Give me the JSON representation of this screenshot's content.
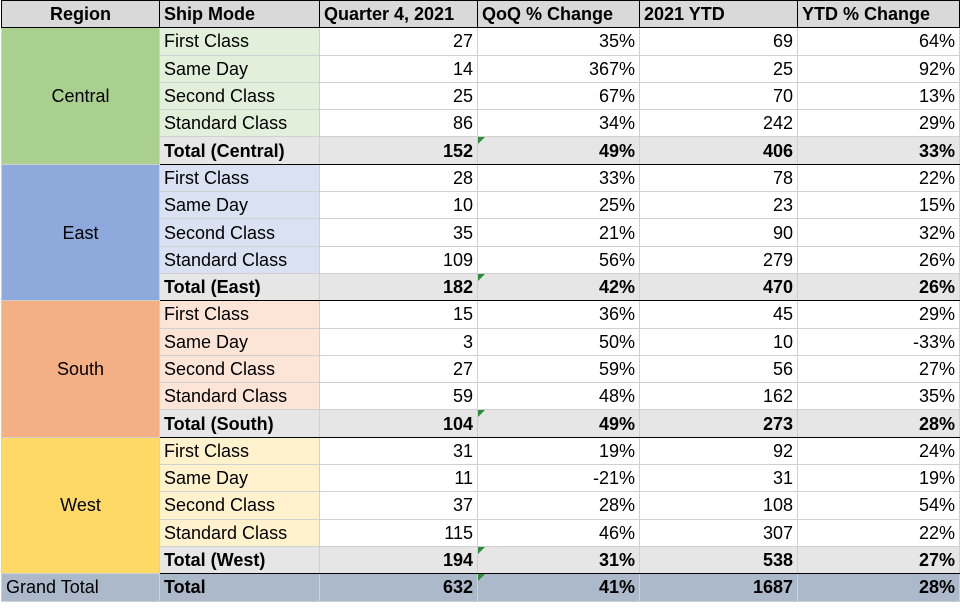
{
  "headers": [
    "Region",
    "Ship Mode",
    "Quarter 4, 2021",
    "QoQ % Change",
    "2021 YTD",
    "YTD % Change"
  ],
  "colors": {
    "header_bg": "#d9d9d9",
    "total_bg": "#e7e6e6",
    "grand_bg": "#acb9ca",
    "negative_text": "#e2231a"
  },
  "regions": [
    {
      "name": "Central",
      "color": "#a9d08e",
      "light": "#e2efda",
      "rows": [
        {
          "mode": "First Class",
          "q4": "27",
          "qoq": "35%",
          "ytd": "69",
          "ytdp": "64%"
        },
        {
          "mode": "Same Day",
          "q4": "14",
          "qoq": "367%",
          "ytd": "25",
          "ytdp": "92%"
        },
        {
          "mode": "Second Class",
          "q4": "25",
          "qoq": "67%",
          "ytd": "70",
          "ytdp": "13%"
        },
        {
          "mode": "Standard Class",
          "q4": "86",
          "qoq": "34%",
          "ytd": "242",
          "ytdp": "29%"
        }
      ],
      "total": {
        "label": "Total (Central)",
        "q4": "152",
        "qoq": "49%",
        "ytd": "406",
        "ytdp": "33%"
      }
    },
    {
      "name": "East",
      "color": "#8ea9db",
      "light": "#d9e1f2",
      "rows": [
        {
          "mode": "First Class",
          "q4": "28",
          "qoq": "33%",
          "ytd": "78",
          "ytdp": "22%"
        },
        {
          "mode": "Same Day",
          "q4": "10",
          "qoq": "25%",
          "ytd": "23",
          "ytdp": "15%"
        },
        {
          "mode": "Second Class",
          "q4": "35",
          "qoq": "21%",
          "ytd": "90",
          "ytdp": "32%"
        },
        {
          "mode": "Standard Class",
          "q4": "109",
          "qoq": "56%",
          "ytd": "279",
          "ytdp": "26%"
        }
      ],
      "total": {
        "label": "Total (East)",
        "q4": "182",
        "qoq": "42%",
        "ytd": "470",
        "ytdp": "26%"
      }
    },
    {
      "name": "South",
      "color": "#f4b084",
      "light": "#fce4d6",
      "rows": [
        {
          "mode": "First Class",
          "q4": "15",
          "qoq": "36%",
          "ytd": "45",
          "ytdp": "29%"
        },
        {
          "mode": "Same Day",
          "q4": "3",
          "qoq": "50%",
          "qoq_red": true,
          "ytd": "10",
          "ytdp": "-33%",
          "ytdp_red": true
        },
        {
          "mode": "Second Class",
          "q4": "27",
          "qoq": "59%",
          "ytd": "56",
          "ytdp": "27%"
        },
        {
          "mode": "Standard Class",
          "q4": "59",
          "qoq": "48%",
          "ytd": "162",
          "ytdp": "35%"
        }
      ],
      "total": {
        "label": "Total (South)",
        "q4": "104",
        "qoq": "49%",
        "ytd": "273",
        "ytdp": "28%"
      }
    },
    {
      "name": "West",
      "color": "#ffd966",
      "light": "#fff2cc",
      "rows": [
        {
          "mode": "First Class",
          "q4": "31",
          "qoq": "19%",
          "qoq_red": true,
          "ytd": "92",
          "ytdp": "24%"
        },
        {
          "mode": "Same Day",
          "q4": "11",
          "qoq": "-21%",
          "ytd": "31",
          "ytdp": "19%"
        },
        {
          "mode": "Second Class",
          "q4": "37",
          "qoq": "28%",
          "ytd": "108",
          "ytdp": "54%"
        },
        {
          "mode": "Standard Class",
          "q4": "115",
          "qoq": "46%",
          "ytd": "307",
          "ytdp": "22%"
        }
      ],
      "total": {
        "label": "Total (West)",
        "q4": "194",
        "qoq": "31%",
        "ytd": "538",
        "ytdp": "27%"
      }
    }
  ],
  "grand_total": {
    "region_label": "Grand Total",
    "label": "Total",
    "q4": "632",
    "qoq": "41%",
    "ytd": "1687",
    "ytdp": "28%"
  }
}
